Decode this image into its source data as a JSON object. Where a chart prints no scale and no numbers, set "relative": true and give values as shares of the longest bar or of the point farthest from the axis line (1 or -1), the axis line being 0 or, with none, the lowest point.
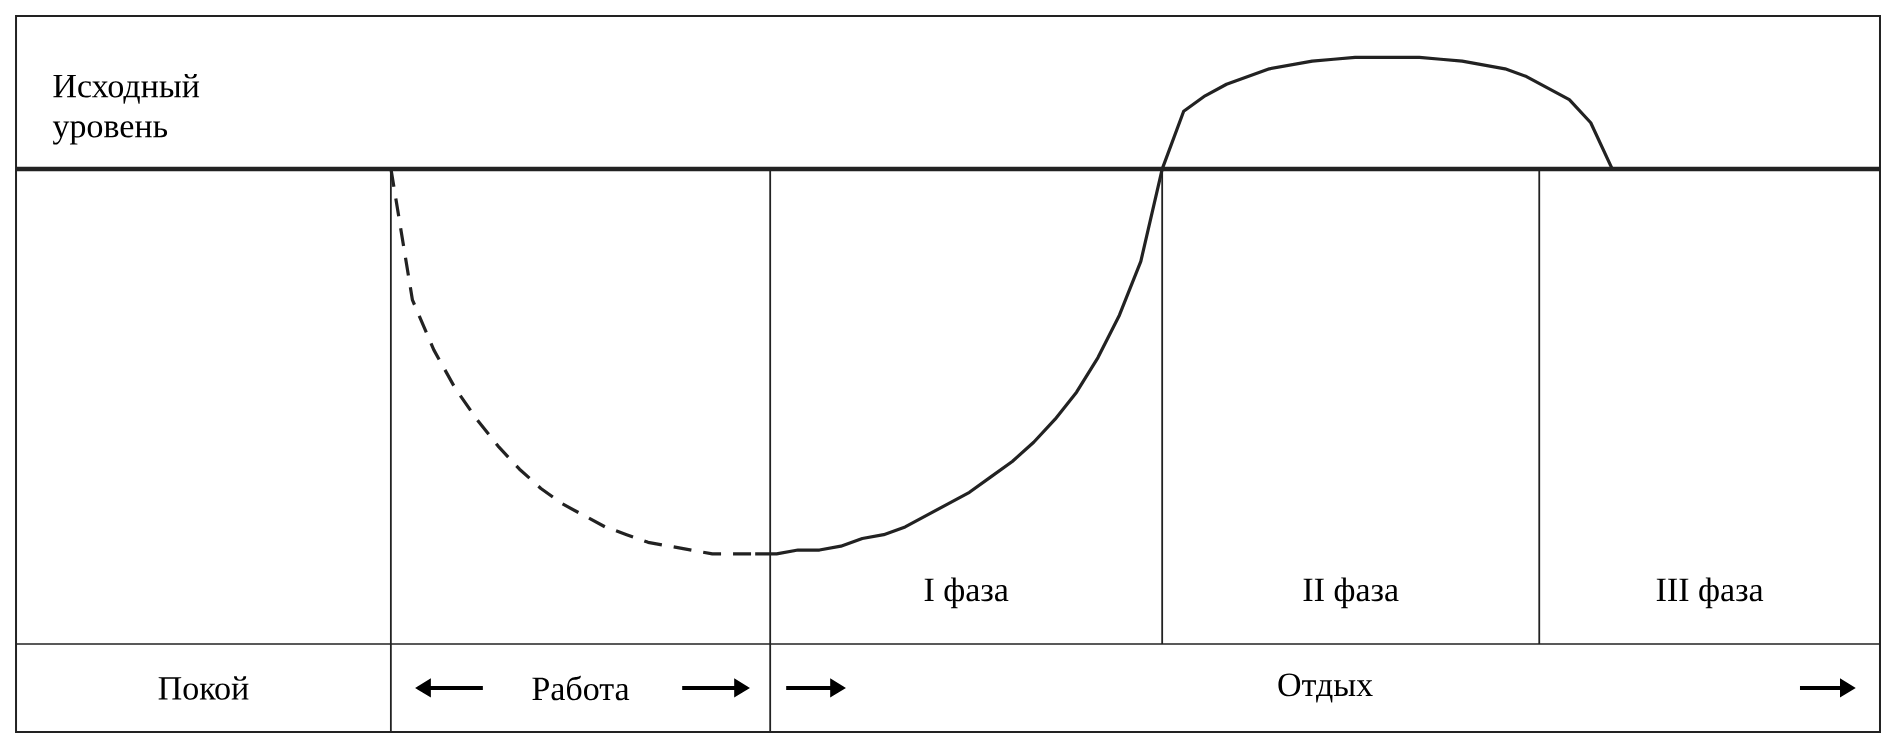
{
  "chart_data": {
    "type": "line",
    "relative": true,
    "annotations": [
      "Покой",
      "Работа",
      "Отдых",
      "I фаза",
      "II фаза",
      "III фаза"
    ],
    "categories": [
      null,
      null,
      null,
      null,
      null,
      null,
      null,
      null,
      null,
      null,
      null,
      null,
      null,
      null,
      null,
      null,
      null,
      null,
      null,
      null,
      null,
      null,
      null,
      null,
      null,
      null,
      null,
      null,
      null,
      null,
      null,
      null,
      null,
      null,
      null,
      null,
      null,
      null,
      null,
      null,
      null,
      null,
      null,
      null,
      null,
      null,
      null,
      null,
      null,
      null,
      null,
      null,
      null,
      null,
      null,
      null,
      null,
      null,
      null,
      null,
      null,
      null,
      null,
      null,
      null,
      null,
      null,
      null,
      null,
      null,
      null,
      null,
      null,
      null,
      null,
      null,
      null,
      null,
      null,
      null,
      null,
      null,
      null,
      null,
      null,
      null,
      null
    ],
    "series": [
      {
        "color": "#222222",
        "line_style": "dashed",
        "values": [
          null,
          null,
          null,
          null,
          null,
          null,
          null,
          null,
          null,
          null,
          null,
          null,
          null,
          null,
          null,
          null,
          null,
          0,
          -0.34,
          -0.47,
          -0.57,
          -0.65,
          -0.72,
          -0.78,
          -0.83,
          -0.87,
          -0.9,
          -0.93,
          -0.95,
          -0.97,
          -0.98,
          -0.99,
          -1,
          -1,
          -1,
          null,
          null,
          null,
          null,
          null,
          null,
          null,
          null,
          null,
          null,
          null,
          null,
          null,
          null,
          null,
          null,
          null,
          null,
          null,
          null,
          null,
          null,
          null,
          null,
          null,
          null,
          null,
          null,
          null,
          null,
          null,
          null,
          null,
          null,
          null,
          null,
          null,
          null,
          null,
          null,
          null,
          null,
          null,
          null,
          null,
          null,
          null,
          null,
          null,
          null,
          null,
          null
        ]
      },
      {
        "color": "#222222",
        "line_style": "solid",
        "values": [
          null,
          null,
          null,
          null,
          null,
          null,
          null,
          null,
          null,
          null,
          null,
          null,
          null,
          null,
          null,
          null,
          null,
          null,
          null,
          null,
          null,
          null,
          null,
          null,
          null,
          null,
          null,
          null,
          null,
          null,
          null,
          null,
          null,
          null,
          -1,
          -1,
          -0.99,
          -0.99,
          -0.98,
          -0.96,
          -0.95,
          -0.93,
          -0.9,
          -0.87,
          -0.84,
          -0.8,
          -0.76,
          -0.71,
          -0.65,
          -0.58,
          -0.49,
          -0.38,
          -0.24,
          0,
          0.15,
          0.19,
          0.22,
          0.24,
          0.26,
          0.27,
          0.28,
          0.285,
          0.29,
          0.29,
          0.29,
          0.29,
          0.285,
          0.28,
          0.27,
          0.26,
          0.24,
          0.21,
          0.18,
          0.12,
          0,
          null,
          null,
          null,
          null,
          null,
          null,
          null,
          null,
          null,
          null,
          null,
          null
        ]
      }
    ],
    "ref_lines": [
      {
        "axis": "y",
        "value": 0,
        "label": "Исходный уровень"
      }
    ]
  }
}
